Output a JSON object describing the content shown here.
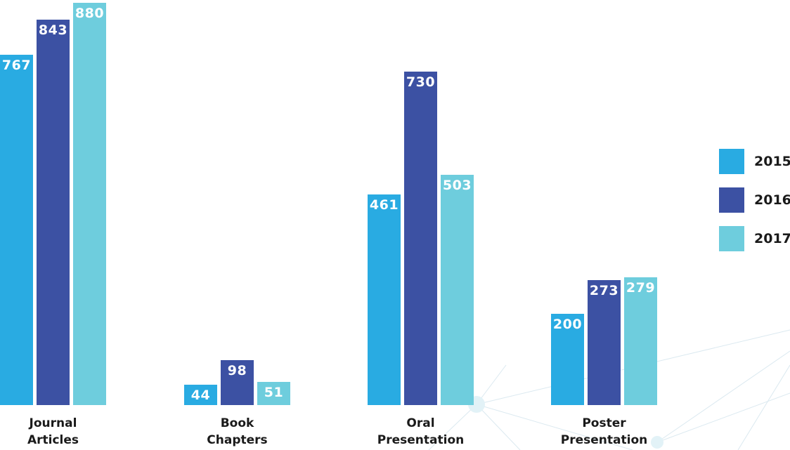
{
  "colors": {
    "2015": "#29abe2",
    "2016": "#3c51a3",
    "2017": "#6ecddd"
  },
  "chart_data": {
    "type": "bar",
    "categories": [
      [
        "Journal",
        "Articles"
      ],
      [
        "Book",
        "Chapters"
      ],
      [
        "Oral",
        "Presentation"
      ],
      [
        "Poster",
        "Presentation"
      ]
    ],
    "series": [
      {
        "name": "2015",
        "values": [
          767,
          44,
          461,
          200
        ]
      },
      {
        "name": "2016",
        "values": [
          843,
          98,
          730,
          273
        ]
      },
      {
        "name": "2017",
        "values": [
          880,
          51,
          503,
          279
        ]
      }
    ],
    "legend": {
      "position": "right",
      "entries": [
        "2015",
        "2016",
        "2017"
      ]
    },
    "grid": false
  }
}
